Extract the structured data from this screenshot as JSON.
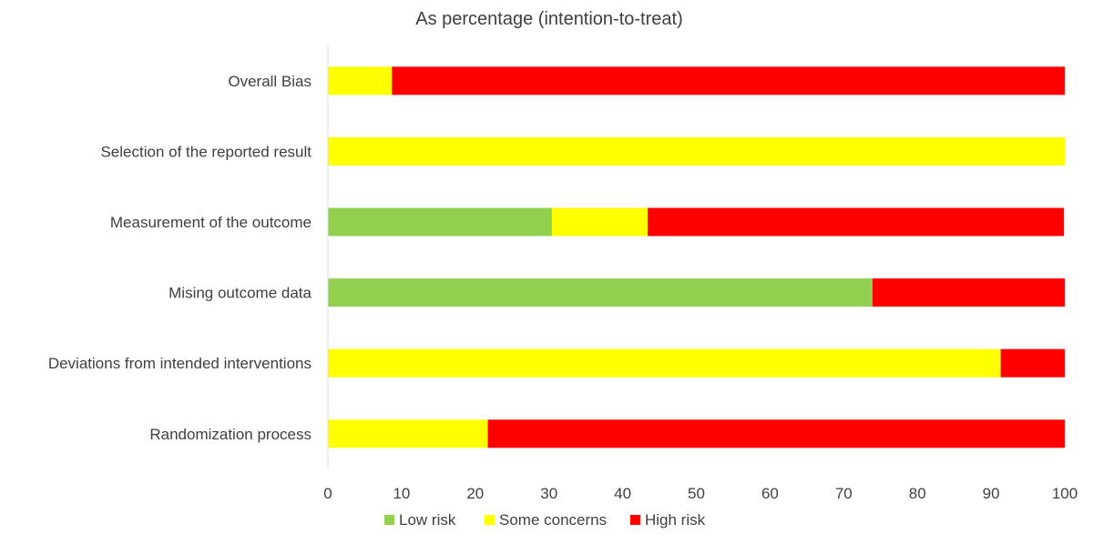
{
  "chart_data": {
    "type": "bar",
    "orientation": "horizontal",
    "stacked": true,
    "title": "As percentage (intention-to-treat)",
    "xlabel": "",
    "ylabel": "",
    "xlim": [
      0,
      100
    ],
    "xticks": [
      0,
      10,
      20,
      30,
      40,
      50,
      60,
      70,
      80,
      90,
      100
    ],
    "grid": false,
    "legend_position": "bottom",
    "categories": [
      "Overall Bias",
      "Selection of the reported result",
      "Measurement of the outcome",
      "Mising outcome data",
      "Deviations from intended interventions",
      "Randomization process"
    ],
    "series": [
      {
        "name": "Low risk",
        "color": "#92D050",
        "values": [
          0,
          0,
          30.4,
          73.9,
          0,
          0
        ]
      },
      {
        "name": "Some concerns",
        "color": "#FFFF00",
        "values": [
          8.7,
          100,
          13.0,
          0,
          91.3,
          21.7
        ]
      },
      {
        "name": "High risk",
        "color": "#FF0000",
        "values": [
          91.3,
          0,
          56.5,
          26.1,
          8.7,
          78.3
        ]
      }
    ]
  }
}
